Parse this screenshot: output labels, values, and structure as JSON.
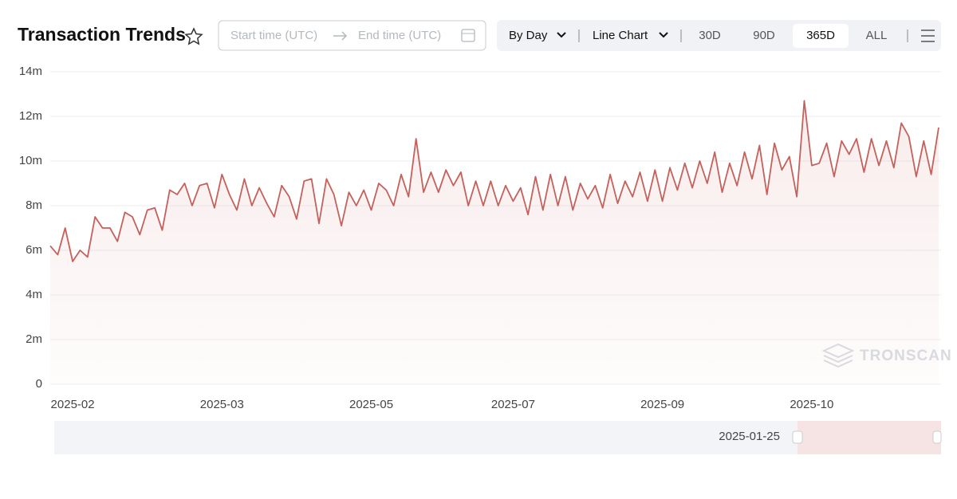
{
  "header": {
    "title": "Transaction Trends"
  },
  "filters": {
    "start_placeholder": "Start time (UTC)",
    "end_placeholder": "End time (UTC)",
    "interval": "By Day",
    "chart_kind": "Line Chart",
    "ranges": [
      "30D",
      "90D",
      "365D",
      "ALL"
    ],
    "active_range": 2
  },
  "watermark": "TRONSCAN",
  "slider": {
    "label": "2025-01-25"
  },
  "chart_data": {
    "type": "line",
    "color": "#c4615c",
    "grid": true,
    "ylim": [
      0,
      14
    ],
    "yticks": [
      0,
      {
        "value": 2,
        "label": "2m"
      },
      {
        "value": 4,
        "label": "4m"
      },
      {
        "value": 6,
        "label": "6m"
      },
      {
        "value": 8,
        "label": "8m"
      },
      {
        "value": 10,
        "label": "10m"
      },
      {
        "value": 12,
        "label": "12m"
      },
      {
        "value": 14,
        "label": "14m"
      }
    ],
    "categories": [
      null,
      null,
      null,
      "2025-02",
      null,
      null,
      null,
      null,
      null,
      null,
      null,
      null,
      null,
      null,
      null,
      null,
      null,
      null,
      null,
      null,
      null,
      null,
      null,
      "2025-03",
      null,
      null,
      null,
      null,
      null,
      null,
      null,
      null,
      null,
      null,
      null,
      null,
      null,
      null,
      null,
      null,
      null,
      null,
      null,
      "2025-05",
      null,
      null,
      null,
      null,
      null,
      null,
      null,
      null,
      null,
      null,
      null,
      null,
      null,
      null,
      null,
      null,
      null,
      null,
      "2025-07",
      null,
      null,
      null,
      null,
      null,
      null,
      null,
      null,
      null,
      null,
      null,
      null,
      null,
      null,
      null,
      null,
      null,
      null,
      null,
      "2025-09",
      null,
      null,
      null,
      null,
      null,
      null,
      null,
      null,
      null,
      null,
      null,
      null,
      null,
      null,
      null,
      null,
      null,
      null,
      null,
      "2025-10",
      null,
      null,
      null,
      null,
      null,
      null,
      null,
      null,
      null,
      null,
      null,
      null,
      null,
      null,
      null,
      null,
      null
    ],
    "values": [
      6.2,
      5.8,
      7.0,
      5.5,
      6.0,
      5.7,
      7.5,
      7.0,
      7.0,
      6.4,
      7.7,
      7.5,
      6.7,
      7.8,
      7.9,
      6.9,
      8.7,
      8.5,
      9.0,
      8.0,
      8.9,
      9.0,
      7.9,
      9.4,
      8.5,
      7.8,
      9.2,
      8.0,
      8.8,
      8.1,
      7.5,
      8.9,
      8.4,
      7.4,
      9.1,
      9.2,
      7.2,
      9.2,
      8.5,
      7.1,
      8.6,
      8.0,
      8.7,
      7.8,
      9.0,
      8.7,
      8.0,
      9.4,
      8.4,
      11.0,
      8.6,
      9.5,
      8.6,
      9.6,
      8.9,
      9.5,
      8.0,
      9.1,
      8.0,
      9.1,
      8.0,
      8.9,
      8.2,
      8.8,
      7.6,
      9.3,
      7.8,
      9.4,
      8.0,
      9.3,
      7.8,
      9.0,
      8.3,
      8.9,
      7.9,
      9.4,
      8.1,
      9.1,
      8.4,
      9.5,
      8.2,
      9.6,
      8.2,
      9.7,
      8.7,
      9.9,
      8.8,
      10.0,
      9.0,
      10.4,
      8.6,
      9.9,
      8.9,
      10.4,
      9.2,
      10.7,
      8.5,
      10.8,
      9.6,
      10.2,
      8.4,
      12.7,
      9.8,
      9.9,
      10.8,
      9.3,
      10.9,
      10.3,
      11.0,
      9.5,
      11.0,
      9.8,
      10.9,
      9.7,
      11.7,
      11.1,
      9.3,
      10.9,
      9.4,
      11.5
    ]
  }
}
